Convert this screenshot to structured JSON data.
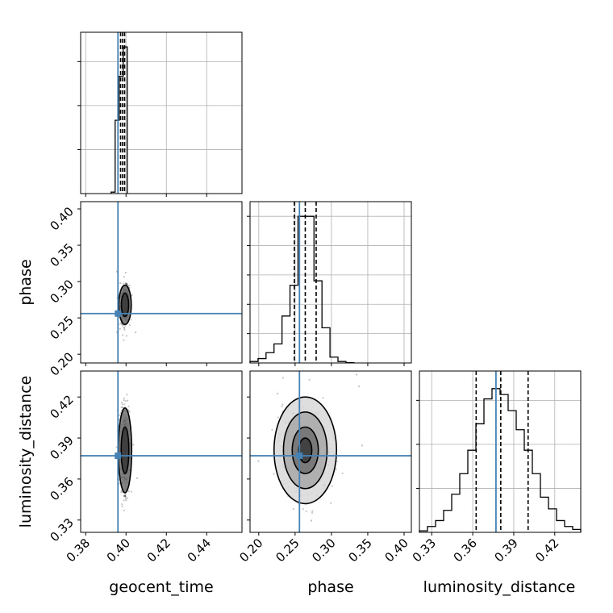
{
  "chart_data": {
    "type": "corner",
    "parameters": [
      "geocent_time",
      "phase",
      "luminosity_distance"
    ],
    "truths": {
      "geocent_time": 0.396,
      "phase": 0.256,
      "luminosity_distance": 0.377
    },
    "ranges": {
      "geocent_time": [
        0.3775,
        0.4575
      ],
      "phase": [
        0.188,
        0.41
      ],
      "luminosity_distance": [
        0.321,
        0.439
      ]
    },
    "ticks": {
      "geocent_time": [
        0.38,
        0.4,
        0.42,
        0.44
      ],
      "phase": [
        0.2,
        0.25,
        0.3,
        0.35,
        0.4
      ],
      "luminosity_distance": [
        0.33,
        0.36,
        0.39,
        0.42
      ]
    },
    "tick_labels": {
      "geocent_time": [
        "0.38",
        "0.40",
        "0.42",
        "0.44"
      ],
      "phase": [
        "0.20",
        "0.25",
        "0.30",
        "0.35",
        "0.40"
      ],
      "luminosity_distance": [
        "0.33",
        "0.36",
        "0.39",
        "0.42"
      ]
    },
    "quantiles": {
      "geocent_time": [
        0.3973,
        0.3983,
        0.3993
      ],
      "phase": [
        0.249,
        0.264,
        0.279
      ],
      "luminosity_distance": [
        0.3625,
        0.3805,
        0.4005
      ]
    },
    "histograms": {
      "geocent_time": {
        "edges": [
          0.3926,
          0.3946,
          0.3966,
          0.3986,
          0.4006
        ],
        "counts": [
          0.01,
          0.5,
          0.8,
          1.0
        ]
      },
      "phase": {
        "edges": [
          0.188,
          0.199,
          0.21,
          0.221,
          0.232,
          0.243,
          0.254,
          0.265,
          0.276,
          0.287,
          0.298,
          0.309,
          0.32,
          0.331
        ],
        "counts": [
          0.01,
          0.03,
          0.07,
          0.13,
          0.32,
          0.53,
          1.0,
          1.0,
          0.56,
          0.24,
          0.04,
          0.01,
          0.002
        ]
      },
      "luminosity_distance": {
        "edges": [
          0.321,
          0.3269,
          0.3328,
          0.3387,
          0.3446,
          0.3505,
          0.3564,
          0.3623,
          0.3682,
          0.3741,
          0.38,
          0.3859,
          0.3918,
          0.3977,
          0.4036,
          0.4095,
          0.4154,
          0.4213,
          0.4272,
          0.4331,
          0.439
        ],
        "counts": [
          0.01,
          0.04,
          0.08,
          0.15,
          0.26,
          0.4,
          0.56,
          0.74,
          0.91,
          0.98,
          0.94,
          0.83,
          0.7,
          0.56,
          0.4,
          0.24,
          0.16,
          0.08,
          0.04,
          0.02
        ]
      }
    },
    "hist_ylim": {
      "geocent_time": [
        0,
        1.1
      ],
      "phase": [
        0,
        1.1
      ],
      "luminosity_distance": [
        0,
        1.1
      ]
    },
    "hist_yticks": {
      "geocent_time": [
        0.3,
        0.6,
        0.9
      ],
      "phase": [
        0.2,
        0.4,
        0.6,
        0.8,
        1.0
      ],
      "luminosity_distance": [
        0.3,
        0.6,
        0.9
      ]
    },
    "pairs": [
      {
        "x": "geocent_time",
        "y": "phase",
        "center": [
          0.3995,
          0.268
        ],
        "sigma": [
          0.0011,
          0.012
        ],
        "rho": 0.1,
        "levels": [
          {
            "sx": 0.0018,
            "sy": 0.016
          },
          {
            "sx": 0.0031,
            "sy": 0.027
          }
        ]
      },
      {
        "x": "geocent_time",
        "y": "luminosity_distance",
        "center": [
          0.3995,
          0.381
        ],
        "sigma": [
          0.0011,
          0.014
        ],
        "rho": 0.0,
        "levels": [
          {
            "sx": 0.0019,
            "sy": 0.017
          },
          {
            "sx": 0.0033,
            "sy": 0.031
          }
        ]
      },
      {
        "x": "phase",
        "y": "luminosity_distance",
        "center": [
          0.264,
          0.381
        ],
        "sigma": [
          0.0155,
          0.0145
        ],
        "rho": -0.05,
        "levels": [
          {
            "sx": 0.009,
            "sy": 0.009
          },
          {
            "sx": 0.018,
            "sy": 0.017
          },
          {
            "sx": 0.03,
            "sy": 0.028
          },
          {
            "sx": 0.043,
            "sy": 0.039
          }
        ]
      }
    ],
    "colors": {
      "truth": "#4682b4",
      "hist": "#000000",
      "grid": "#b0b0b0",
      "contour": "#000000"
    }
  }
}
